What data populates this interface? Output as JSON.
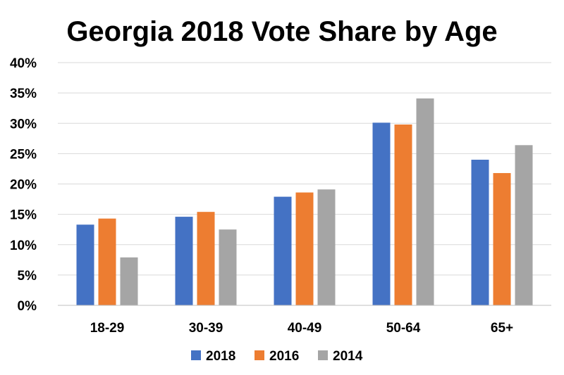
{
  "chart_data": {
    "type": "bar",
    "title": "Georgia 2018 Vote Share by Age",
    "xlabel": "",
    "ylabel": "",
    "categories": [
      "18-29",
      "30-39",
      "40-49",
      "50-64",
      "65+"
    ],
    "series": [
      {
        "name": "2018",
        "color": "#4472c4",
        "values": [
          13.3,
          14.6,
          17.9,
          30.1,
          24.0
        ]
      },
      {
        "name": "2016",
        "color": "#ed7d31",
        "values": [
          14.3,
          15.4,
          18.6,
          29.8,
          21.8
        ]
      },
      {
        "name": "2014",
        "color": "#a5a5a5",
        "values": [
          7.9,
          12.5,
          19.1,
          34.1,
          26.4
        ]
      }
    ],
    "ylim": [
      0,
      40
    ],
    "yticks": [
      "0%",
      "5%",
      "10%",
      "15%",
      "20%",
      "25%",
      "30%",
      "35%",
      "40%"
    ],
    "grid": true,
    "legend_position": "bottom"
  }
}
